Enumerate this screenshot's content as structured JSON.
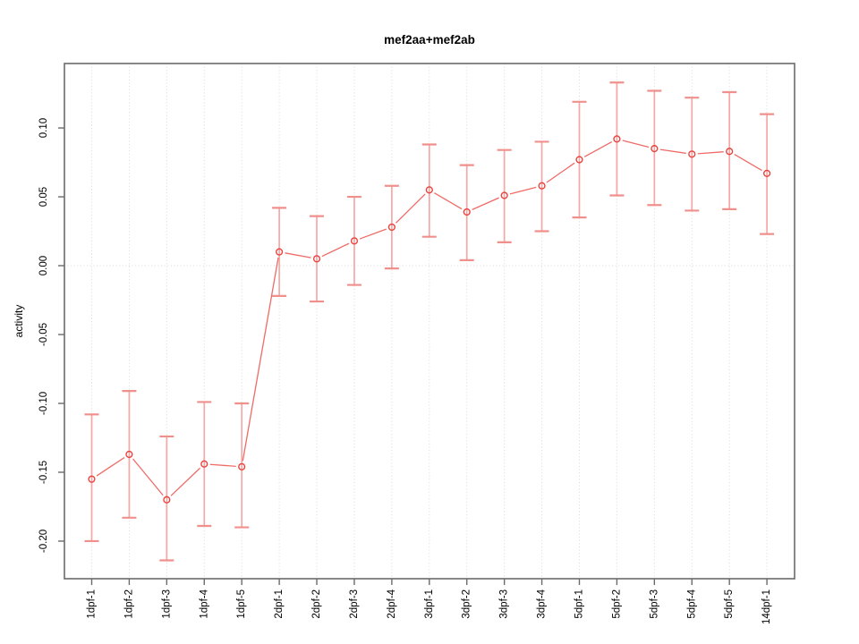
{
  "title": "mef2aa+mef2ab",
  "chart_data": {
    "type": "line",
    "title": "mef2aa+mef2ab",
    "xlabel": "",
    "ylabel": "activity",
    "categories": [
      "1dpf-1",
      "1dpf-2",
      "1dpf-3",
      "1dpf-4",
      "1dpf-5",
      "2dpf-1",
      "2dpf-2",
      "2dpf-3",
      "2dpf-4",
      "3dpf-1",
      "3dpf-2",
      "3dpf-3",
      "3dpf-4",
      "5dpf-1",
      "5dpf-2",
      "5dpf-3",
      "5dpf-4",
      "5dpf-5",
      "14dpf-1"
    ],
    "values": [
      -0.155,
      -0.137,
      -0.17,
      -0.144,
      -0.146,
      0.01,
      0.005,
      0.018,
      0.028,
      0.055,
      0.039,
      0.051,
      0.058,
      0.077,
      0.092,
      0.085,
      0.081,
      0.083,
      0.067
    ],
    "error_upper": [
      -0.108,
      -0.091,
      -0.124,
      -0.099,
      -0.1,
      0.042,
      0.036,
      0.05,
      0.058,
      0.088,
      0.073,
      0.084,
      0.09,
      0.119,
      0.133,
      0.127,
      0.122,
      0.126,
      0.11
    ],
    "error_lower": [
      -0.2,
      -0.183,
      -0.214,
      -0.189,
      -0.19,
      -0.022,
      -0.026,
      -0.014,
      -0.002,
      0.021,
      0.004,
      0.017,
      0.025,
      0.035,
      0.051,
      0.044,
      0.04,
      0.041,
      0.023
    ],
    "yticks": [
      0.1,
      0.05,
      0.0,
      -0.05,
      -0.1,
      -0.15,
      -0.2
    ],
    "ytick_labels": [
      "0.10",
      "0.05",
      "0.00",
      "-0.05",
      "-0.10",
      "-0.15",
      "-0.20"
    ],
    "ylim": [
      -0.2273,
      0.1468
    ],
    "grid": "dotted vertical line at every category; dotted horizontal line at zero",
    "legend": "none",
    "marker": "open-circle",
    "colors": {
      "point_red": "#e8433e",
      "line_red": "#ee6b66",
      "error_bar_pink": "#f5a8a6",
      "error_cap_pink": "#f0908d",
      "grid_gray": "#d9d9d9",
      "frame_gray": "#6a6a6a",
      "text_black": "#000000",
      "background": "#ffffff"
    }
  }
}
